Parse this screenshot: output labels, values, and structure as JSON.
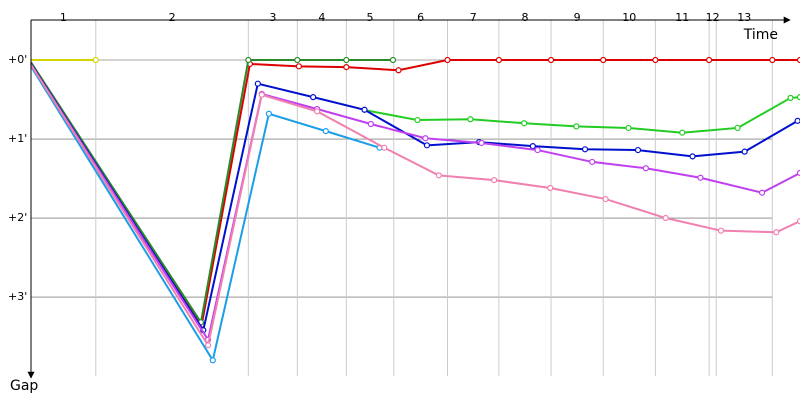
{
  "chart_data": {
    "type": "line",
    "x_label": "Time",
    "y_label": "Gap",
    "laps": [
      "1",
      "2",
      "3",
      "4",
      "5",
      "6",
      "7",
      "8",
      "9",
      "10",
      "11",
      "12",
      "13"
    ],
    "lap_ends": [
      0.82,
      2.75,
      3.37,
      3.99,
      4.59,
      5.27,
      5.92,
      6.58,
      7.24,
      7.9,
      8.58,
      8.67,
      9.38
    ],
    "xlim": [
      0,
      9.73
    ],
    "ylim": [
      -0.5,
      4.05
    ],
    "yticks": [
      {
        "value": 0,
        "label": "+0'"
      },
      {
        "value": 1,
        "label": "+1'"
      },
      {
        "value": 2,
        "label": "+2'"
      },
      {
        "value": 3,
        "label": "+3'"
      }
    ],
    "series": [
      {
        "color": "#d4d400",
        "x": [
          0,
          0.82
        ],
        "values": [
          0,
          0
        ]
      },
      {
        "color": "#dd0000",
        "x": [
          0,
          2.16,
          2.77,
          3.39,
          3.99,
          4.65,
          5.27,
          5.92,
          6.58,
          7.24,
          7.9,
          8.58,
          9.38,
          9.73
        ],
        "values": [
          0.03,
          3.35,
          0.05,
          0.08,
          0.09,
          0.13,
          0,
          0,
          0,
          0,
          0,
          0,
          0,
          0
        ]
      },
      {
        "color": "#2a8a2a",
        "x": [
          0,
          2.15,
          2.75,
          3.37,
          3.99,
          4.58
        ],
        "values": [
          0.03,
          3.32,
          0,
          0,
          0,
          0
        ]
      },
      {
        "color": "#22cc22",
        "x": [
          4.2,
          4.89,
          5.56,
          6.24,
          6.9,
          7.56,
          8.24,
          8.94,
          9.61,
          9.73
        ],
        "values": [
          0.63,
          0.76,
          0.75,
          0.8,
          0.84,
          0.86,
          0.92,
          0.86,
          0.48,
          0.47
        ]
      },
      {
        "color": "#0010cc",
        "x": [
          0,
          2.18,
          2.87,
          3.57,
          4.22,
          5.01,
          5.67,
          6.35,
          7.01,
          7.68,
          8.37,
          9.03,
          9.7
        ],
        "values": [
          0.05,
          3.42,
          0.3,
          0.47,
          0.63,
          1.08,
          1.04,
          1.09,
          1.13,
          1.14,
          1.22,
          1.16,
          0.77
        ]
      },
      {
        "color": "#1a9ee8",
        "x": [
          0,
          2.3,
          3.01,
          3.73,
          4.41
        ],
        "values": [
          0.08,
          3.8,
          0.68,
          0.9,
          1.11
        ]
      },
      {
        "color": "#c040f0",
        "x": [
          0,
          2.24,
          2.92,
          3.62,
          4.3,
          4.99,
          5.7,
          6.41,
          7.1,
          7.78,
          8.47,
          9.25,
          9.73
        ],
        "values": [
          0.06,
          3.54,
          0.43,
          0.62,
          0.81,
          0.99,
          1.05,
          1.14,
          1.29,
          1.37,
          1.49,
          1.68,
          1.43
        ]
      },
      {
        "color": "#f080b0",
        "x": [
          0,
          2.24,
          2.92,
          3.62,
          4.47,
          5.16,
          5.86,
          6.57,
          7.27,
          8.03,
          8.73,
          9.43,
          9.73
        ],
        "values": [
          0.06,
          3.61,
          0.44,
          0.65,
          1.11,
          1.46,
          1.52,
          1.62,
          1.76,
          2.0,
          2.16,
          2.18,
          2.04
        ]
      }
    ]
  }
}
